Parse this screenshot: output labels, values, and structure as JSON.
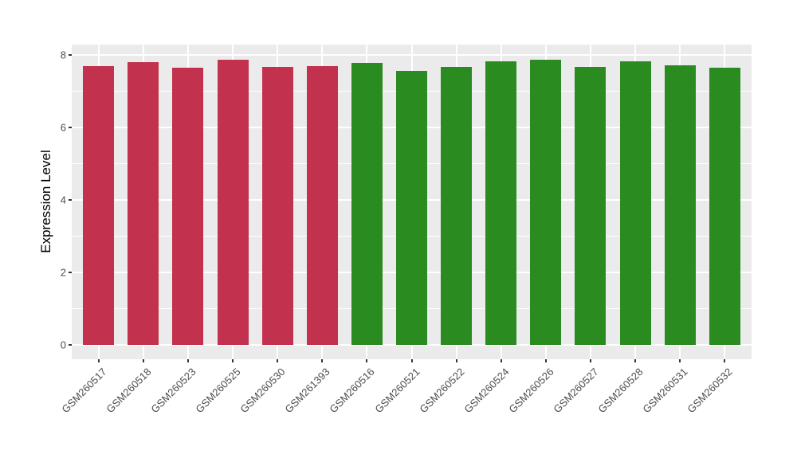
{
  "chart_data": {
    "type": "bar",
    "title": "",
    "xlabel": "",
    "ylabel": "Expression Level",
    "ylim": [
      -0.39,
      8.25
    ],
    "yticks": [
      0,
      2,
      4,
      6,
      8
    ],
    "yticks_minor": [
      1,
      3,
      5,
      7
    ],
    "grid": "on",
    "legend_position": "none",
    "panel_background": "#EBEBEB",
    "grid_color": "#FFFFFF",
    "tick_label_color": "#4D4D4D",
    "categories": [
      "GSM260517",
      "GSM260518",
      "GSM260523",
      "GSM260525",
      "GSM260530",
      "GSM261393",
      "GSM260516",
      "GSM260521",
      "GSM260522",
      "GSM260524",
      "GSM260526",
      "GSM260527",
      "GSM260528",
      "GSM260531",
      "GSM260532"
    ],
    "values": [
      7.68,
      7.79,
      7.64,
      7.86,
      7.67,
      7.69,
      7.77,
      7.54,
      7.67,
      7.81,
      7.86,
      7.65,
      7.82,
      7.7,
      7.63
    ],
    "groups": [
      "group1",
      "group1",
      "group1",
      "group1",
      "group1",
      "group1",
      "group2",
      "group2",
      "group2",
      "group2",
      "group2",
      "group2",
      "group2",
      "group2",
      "group2"
    ],
    "colors": {
      "group1": "#C2324E",
      "group2": "#2A8B21"
    }
  }
}
